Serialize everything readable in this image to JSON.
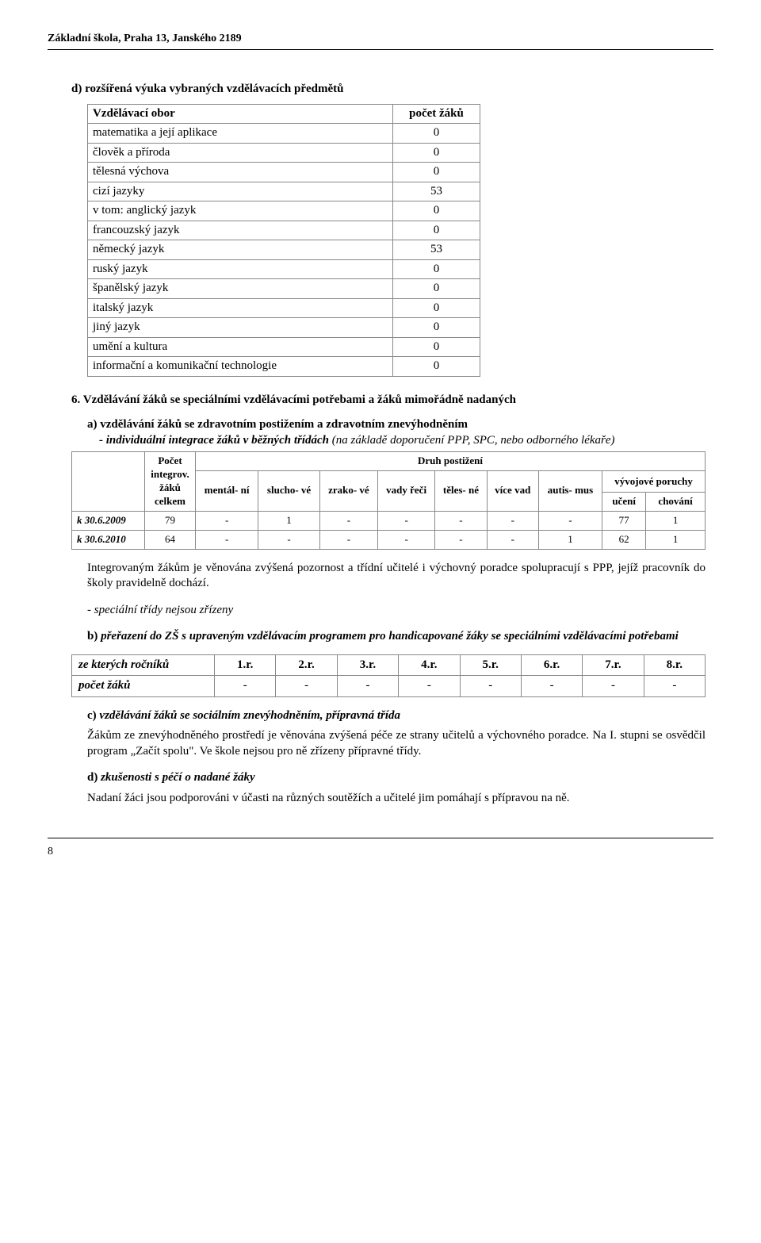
{
  "header": "Základní škola, Praha 13, Janského 2189",
  "page_number": "8",
  "section_d": {
    "letter": "d)",
    "title": "rozšířená výuka vybraných vzdělávacích předmětů",
    "table": {
      "header": [
        "Vzdělávací obor",
        "počet žáků"
      ],
      "rows": [
        {
          "label": "matematika a její aplikace",
          "val": "0",
          "indent": 1
        },
        {
          "label": "člověk a příroda",
          "val": "0",
          "indent": 1
        },
        {
          "label": "tělesná výchova",
          "val": "0",
          "indent": 1
        },
        {
          "label": "cizí jazyky",
          "val": "53",
          "indent": 1
        },
        {
          "label": "v tom: anglický jazyk",
          "val": "0",
          "indent": 1
        },
        {
          "label": "francouzský jazyk",
          "val": "0",
          "indent": 2
        },
        {
          "label": "německý jazyk",
          "val": "53",
          "indent": 2
        },
        {
          "label": "ruský jazyk",
          "val": "0",
          "indent": 2
        },
        {
          "label": "španělský jazyk",
          "val": "0",
          "indent": 2
        },
        {
          "label": "italský jazyk",
          "val": "0",
          "indent": 2
        },
        {
          "label": "jiný jazyk",
          "val": "0",
          "indent": 2
        },
        {
          "label": "umění a kultura",
          "val": "0",
          "indent": 1
        },
        {
          "label": "informační a komunikační technologie",
          "val": "0",
          "indent": 1
        }
      ]
    }
  },
  "section_6": {
    "number": "6.",
    "title": "Vzdělávání žáků se speciálními vzdělávacími potřebami a žáků mimořádně nadaných",
    "sub_a": {
      "letter": "a)",
      "bold": "vzdělávání žáků se zdravotním postižením a zdravotním znevýhodněním",
      "ital_line1": "- individuální integrace žáků v běžných třídách",
      "ital_tail": "(na základě doporučení PPP, SPC, nebo odborného lékaře)",
      "table": {
        "col_pocet": "Počet integrov. žáků celkem",
        "col_druh": "Druh postižení",
        "cols": [
          "mentál-\nní",
          "slucho-\nvé",
          "zrako-\nvé",
          "vady\nřeči",
          "těles-\nné",
          "více\nvad",
          "autis-\nmus"
        ],
        "col_vyvoj": "vývojové poruchy",
        "col_vyvoj_sub": [
          "učení",
          "chování"
        ],
        "rows": [
          {
            "label": "k 30.6.2009",
            "pocet": "79",
            "vals": [
              "-",
              "1",
              "-",
              "-",
              "-",
              "-",
              "-",
              "77",
              "1"
            ]
          },
          {
            "label": "k 30.6.2010",
            "pocet": "64",
            "vals": [
              "-",
              "-",
              "-",
              "-",
              "-",
              "-",
              "1",
              "62",
              "1"
            ]
          }
        ]
      },
      "para": "Integrovaným žákům je věnována zvýšená pozornost a třídní učitelé i výchovný poradce spolupracují s PPP, jejíž pracovník do školy pravidelně dochází.",
      "ital_note": "- speciální třídy nejsou zřízeny"
    },
    "sub_b": {
      "letter": "b)",
      "text": "přeřazení do ZŠ s upraveným vzdělávacím programem pro handicapované žáky se speciálními vzdělávacími potřebami",
      "table": {
        "row1_label": "ze kterých ročníků",
        "row1": [
          "1.r.",
          "2.r.",
          "3.r.",
          "4.r.",
          "5.r.",
          "6.r.",
          "7.r.",
          "8.r."
        ],
        "row2_label": "počet žáků",
        "row2": [
          "-",
          "-",
          "-",
          "-",
          "-",
          "-",
          "-",
          "-"
        ]
      }
    },
    "sub_c": {
      "letter": "c)",
      "title": "vzdělávání žáků se sociálním znevýhodněním, přípravná třída",
      "para": "Žákům ze znevýhodněného prostředí je věnována zvýšená péče ze strany učitelů a výchovného poradce. Na I. stupni se osvědčil program „Začít spolu\". Ve škole nejsou pro ně zřízeny přípravné třídy."
    },
    "sub_d": {
      "letter": "d)",
      "title": "zkušenosti s péčí o nadané žáky",
      "para": "Nadaní žáci jsou podporováni v účasti na různých soutěžích a učitelé jim pomáhají s přípravou na ně."
    }
  }
}
